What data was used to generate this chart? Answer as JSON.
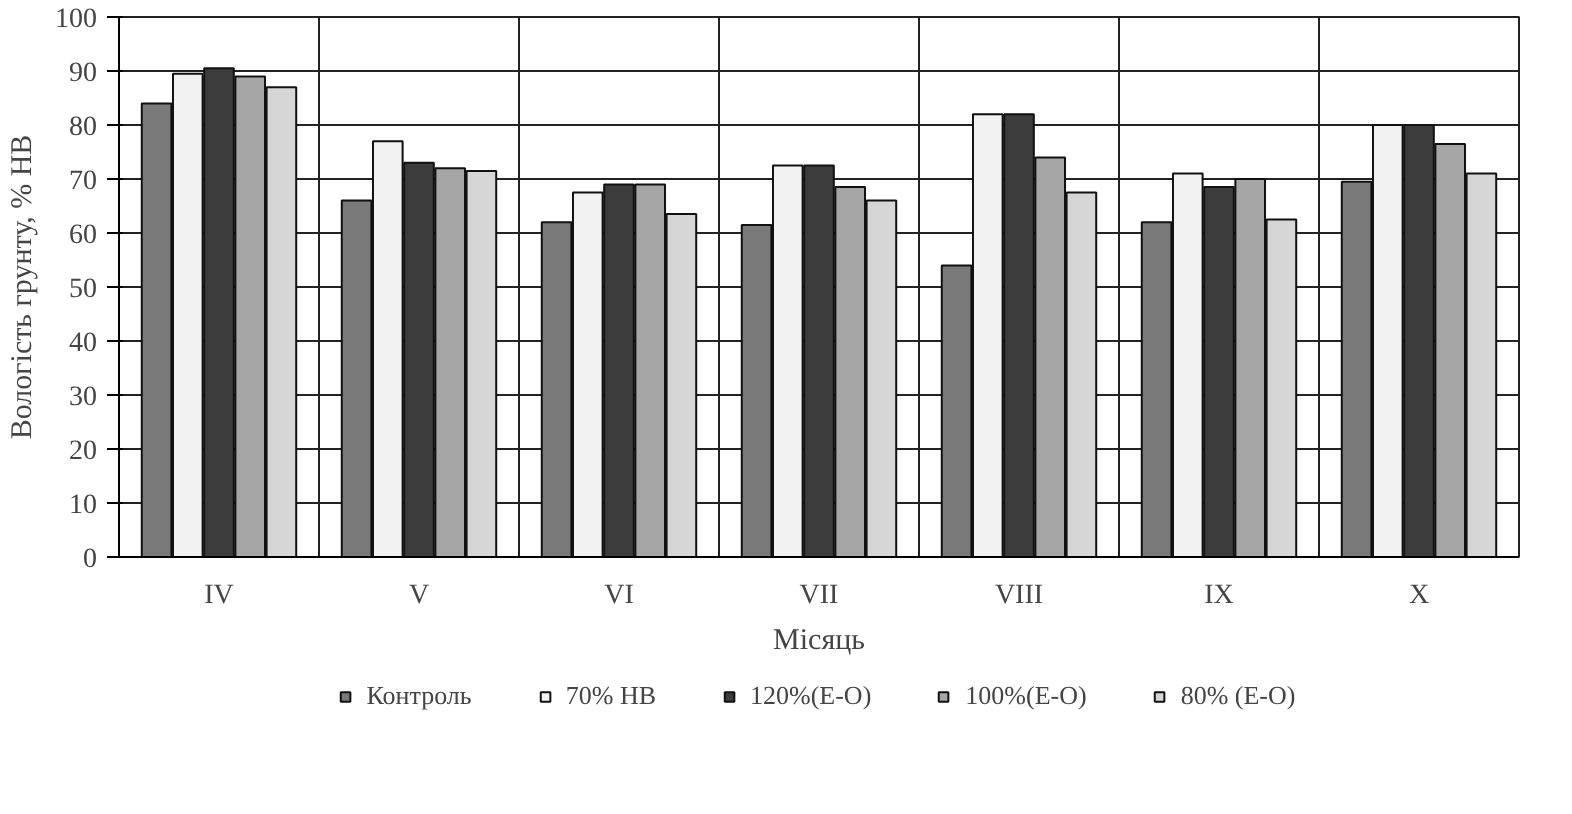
{
  "chart_data": {
    "type": "bar",
    "xlabel": "Місяць",
    "ylabel": "Вологість грунту, % НВ",
    "categories": [
      "IV",
      "V",
      "VI",
      "VII",
      "VIII",
      "IX",
      "X"
    ],
    "series": [
      {
        "name": "Контроль",
        "color": "#7a7a7a",
        "values": [
          84,
          66,
          62,
          61.5,
          54,
          62,
          69.5
        ]
      },
      {
        "name": "70% НВ",
        "color": "#f2f2f2",
        "values": [
          89.5,
          77,
          67.5,
          72.5,
          82,
          71,
          80
        ]
      },
      {
        "name": "120%(Е-О)",
        "color": "#3c3c3c",
        "values": [
          90.5,
          73,
          69,
          72.5,
          82,
          68.5,
          80
        ]
      },
      {
        "name": "100%(Е-О)",
        "color": "#a6a6a6",
        "values": [
          89,
          72,
          69,
          68.5,
          74,
          70,
          76.5
        ]
      },
      {
        "name": "80% (Е-О)",
        "color": "#d6d6d6",
        "values": [
          87,
          71.5,
          63.5,
          66,
          67.5,
          62.5,
          71
        ]
      }
    ],
    "ylim": [
      0,
      100
    ],
    "yticks": [
      0,
      10,
      20,
      30,
      40,
      50,
      60,
      70,
      80,
      90,
      100
    ],
    "grid": true,
    "legend": "bottom"
  }
}
